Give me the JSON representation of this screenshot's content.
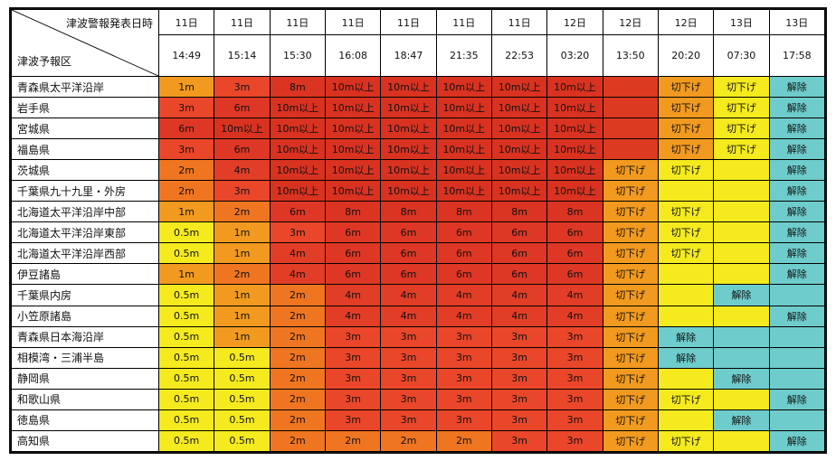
{
  "header": {
    "corner_top": "津波警報発表日時",
    "corner_bottom": "津波予報区",
    "columns": [
      {
        "day": "11日",
        "time": "14:49"
      },
      {
        "day": "11日",
        "time": "15:14"
      },
      {
        "day": "11日",
        "time": "15:30"
      },
      {
        "day": "11日",
        "time": "16:08"
      },
      {
        "day": "11日",
        "time": "18:47"
      },
      {
        "day": "11日",
        "time": "21:35"
      },
      {
        "day": "11日",
        "time": "22:53"
      },
      {
        "day": "12日",
        "time": "03:20"
      },
      {
        "day": "12日",
        "time": "13:50"
      },
      {
        "day": "12日",
        "time": "20:20"
      },
      {
        "day": "13日",
        "time": "07:30"
      },
      {
        "day": "13日",
        "time": "17:58"
      }
    ]
  },
  "rows": [
    {
      "region": "青森県太平洋沿岸",
      "cells": [
        {
          "text": "1m",
          "c": "lv-1"
        },
        {
          "text": "3m",
          "c": "lv-3"
        },
        {
          "text": "8m",
          "c": "lv-8"
        },
        {
          "text": "10m以上",
          "c": "lv-10"
        },
        {
          "text": "10m以上",
          "c": "lv-10"
        },
        {
          "text": "10m以上",
          "c": "lv-10"
        },
        {
          "text": "10m以上",
          "c": "lv-10"
        },
        {
          "text": "10m以上",
          "c": "lv-10"
        },
        {
          "text": "",
          "c": "lv-blank-red"
        },
        {
          "text": "切下げ",
          "c": "st-down-orange"
        },
        {
          "text": "切下げ",
          "c": "st-down"
        },
        {
          "text": "解除",
          "c": "st-lift"
        }
      ]
    },
    {
      "region": "岩手県",
      "cells": [
        {
          "text": "3m",
          "c": "lv-3"
        },
        {
          "text": "6m",
          "c": "lv-6"
        },
        {
          "text": "10m以上",
          "c": "lv-10"
        },
        {
          "text": "10m以上",
          "c": "lv-10"
        },
        {
          "text": "10m以上",
          "c": "lv-10"
        },
        {
          "text": "10m以上",
          "c": "lv-10"
        },
        {
          "text": "10m以上",
          "c": "lv-10"
        },
        {
          "text": "10m以上",
          "c": "lv-10"
        },
        {
          "text": "",
          "c": "lv-blank-red"
        },
        {
          "text": "切下げ",
          "c": "st-down-orange"
        },
        {
          "text": "切下げ",
          "c": "st-down"
        },
        {
          "text": "解除",
          "c": "st-lift"
        }
      ]
    },
    {
      "region": "宮城県",
      "cells": [
        {
          "text": "6m",
          "c": "lv-6"
        },
        {
          "text": "10m以上",
          "c": "lv-10"
        },
        {
          "text": "10m以上",
          "c": "lv-10"
        },
        {
          "text": "10m以上",
          "c": "lv-10"
        },
        {
          "text": "10m以上",
          "c": "lv-10"
        },
        {
          "text": "10m以上",
          "c": "lv-10"
        },
        {
          "text": "10m以上",
          "c": "lv-10"
        },
        {
          "text": "10m以上",
          "c": "lv-10"
        },
        {
          "text": "",
          "c": "lv-blank-red"
        },
        {
          "text": "切下げ",
          "c": "st-down-orange"
        },
        {
          "text": "切下げ",
          "c": "st-down"
        },
        {
          "text": "解除",
          "c": "st-lift"
        }
      ]
    },
    {
      "region": "福島県",
      "cells": [
        {
          "text": "3m",
          "c": "lv-3"
        },
        {
          "text": "6m",
          "c": "lv-6"
        },
        {
          "text": "10m以上",
          "c": "lv-10"
        },
        {
          "text": "10m以上",
          "c": "lv-10"
        },
        {
          "text": "10m以上",
          "c": "lv-10"
        },
        {
          "text": "10m以上",
          "c": "lv-10"
        },
        {
          "text": "10m以上",
          "c": "lv-10"
        },
        {
          "text": "10m以上",
          "c": "lv-10"
        },
        {
          "text": "",
          "c": "lv-blank-red"
        },
        {
          "text": "切下げ",
          "c": "st-down-orange"
        },
        {
          "text": "切下げ",
          "c": "st-down"
        },
        {
          "text": "解除",
          "c": "st-lift"
        }
      ]
    },
    {
      "region": "茨城県",
      "cells": [
        {
          "text": "2m",
          "c": "lv-2"
        },
        {
          "text": "4m",
          "c": "lv-4"
        },
        {
          "text": "10m以上",
          "c": "lv-10"
        },
        {
          "text": "10m以上",
          "c": "lv-10"
        },
        {
          "text": "10m以上",
          "c": "lv-10"
        },
        {
          "text": "10m以上",
          "c": "lv-10"
        },
        {
          "text": "10m以上",
          "c": "lv-10"
        },
        {
          "text": "10m以上",
          "c": "lv-10"
        },
        {
          "text": "切下げ",
          "c": "st-down-orange"
        },
        {
          "text": "切下げ",
          "c": "st-down"
        },
        {
          "text": "",
          "c": "st-empty-yellow"
        },
        {
          "text": "解除",
          "c": "st-lift"
        }
      ]
    },
    {
      "region": "千葉県九十九里・外房",
      "cells": [
        {
          "text": "2m",
          "c": "lv-2"
        },
        {
          "text": "3m",
          "c": "lv-3"
        },
        {
          "text": "10m以上",
          "c": "lv-10"
        },
        {
          "text": "10m以上",
          "c": "lv-10"
        },
        {
          "text": "10m以上",
          "c": "lv-10"
        },
        {
          "text": "10m以上",
          "c": "lv-10"
        },
        {
          "text": "10m以上",
          "c": "lv-10"
        },
        {
          "text": "10m以上",
          "c": "lv-10"
        },
        {
          "text": "切下げ",
          "c": "st-down-orange"
        },
        {
          "text": "",
          "c": "st-empty-yellow"
        },
        {
          "text": "",
          "c": "st-empty-yellow"
        },
        {
          "text": "解除",
          "c": "st-lift"
        }
      ]
    },
    {
      "region": "北海道太平洋沿岸中部",
      "cells": [
        {
          "text": "1m",
          "c": "lv-1"
        },
        {
          "text": "2m",
          "c": "lv-2"
        },
        {
          "text": "6m",
          "c": "lv-6"
        },
        {
          "text": "8m",
          "c": "lv-8"
        },
        {
          "text": "8m",
          "c": "lv-8"
        },
        {
          "text": "8m",
          "c": "lv-8"
        },
        {
          "text": "8m",
          "c": "lv-8"
        },
        {
          "text": "8m",
          "c": "lv-8"
        },
        {
          "text": "切下げ",
          "c": "st-down-orange"
        },
        {
          "text": "切下げ",
          "c": "st-down"
        },
        {
          "text": "",
          "c": "st-empty-yellow"
        },
        {
          "text": "解除",
          "c": "st-lift"
        }
      ]
    },
    {
      "region": "北海道太平洋沿岸東部",
      "cells": [
        {
          "text": "0.5m",
          "c": "lv-05"
        },
        {
          "text": "1m",
          "c": "lv-1"
        },
        {
          "text": "3m",
          "c": "lv-3"
        },
        {
          "text": "6m",
          "c": "lv-6"
        },
        {
          "text": "6m",
          "c": "lv-6"
        },
        {
          "text": "6m",
          "c": "lv-6"
        },
        {
          "text": "6m",
          "c": "lv-6"
        },
        {
          "text": "6m",
          "c": "lv-6"
        },
        {
          "text": "切下げ",
          "c": "st-down-orange"
        },
        {
          "text": "切下げ",
          "c": "st-down"
        },
        {
          "text": "",
          "c": "st-empty-yellow"
        },
        {
          "text": "解除",
          "c": "st-lift"
        }
      ]
    },
    {
      "region": "北海道太平洋沿岸西部",
      "cells": [
        {
          "text": "0.5m",
          "c": "lv-05"
        },
        {
          "text": "1m",
          "c": "lv-1"
        },
        {
          "text": "4m",
          "c": "lv-4"
        },
        {
          "text": "6m",
          "c": "lv-6"
        },
        {
          "text": "6m",
          "c": "lv-6"
        },
        {
          "text": "6m",
          "c": "lv-6"
        },
        {
          "text": "6m",
          "c": "lv-6"
        },
        {
          "text": "6m",
          "c": "lv-6"
        },
        {
          "text": "切下げ",
          "c": "st-down-orange"
        },
        {
          "text": "切下げ",
          "c": "st-down"
        },
        {
          "text": "",
          "c": "st-empty-yellow"
        },
        {
          "text": "解除",
          "c": "st-lift"
        }
      ]
    },
    {
      "region": "伊豆諸島",
      "cells": [
        {
          "text": "1m",
          "c": "lv-1"
        },
        {
          "text": "2m",
          "c": "lv-2"
        },
        {
          "text": "4m",
          "c": "lv-4"
        },
        {
          "text": "6m",
          "c": "lv-6"
        },
        {
          "text": "6m",
          "c": "lv-6"
        },
        {
          "text": "6m",
          "c": "lv-6"
        },
        {
          "text": "6m",
          "c": "lv-6"
        },
        {
          "text": "6m",
          "c": "lv-6"
        },
        {
          "text": "切下げ",
          "c": "st-down-orange"
        },
        {
          "text": "",
          "c": "st-empty-yellow"
        },
        {
          "text": "",
          "c": "st-empty-yellow"
        },
        {
          "text": "解除",
          "c": "st-lift"
        }
      ]
    },
    {
      "region": "千葉県内房",
      "cells": [
        {
          "text": "0.5m",
          "c": "lv-05"
        },
        {
          "text": "1m",
          "c": "lv-1"
        },
        {
          "text": "2m",
          "c": "lv-2"
        },
        {
          "text": "4m",
          "c": "lv-4"
        },
        {
          "text": "4m",
          "c": "lv-4"
        },
        {
          "text": "4m",
          "c": "lv-4"
        },
        {
          "text": "4m",
          "c": "lv-4"
        },
        {
          "text": "4m",
          "c": "lv-4"
        },
        {
          "text": "切下げ",
          "c": "st-down-orange"
        },
        {
          "text": "",
          "c": "st-empty-yellow"
        },
        {
          "text": "解除",
          "c": "st-lift"
        },
        {
          "text": "",
          "c": "st-empty-cyan"
        }
      ]
    },
    {
      "region": "小笠原諸島",
      "cells": [
        {
          "text": "0.5m",
          "c": "lv-05"
        },
        {
          "text": "1m",
          "c": "lv-1"
        },
        {
          "text": "2m",
          "c": "lv-2"
        },
        {
          "text": "4m",
          "c": "lv-4"
        },
        {
          "text": "4m",
          "c": "lv-4"
        },
        {
          "text": "4m",
          "c": "lv-4"
        },
        {
          "text": "4m",
          "c": "lv-4"
        },
        {
          "text": "4m",
          "c": "lv-4"
        },
        {
          "text": "切下げ",
          "c": "st-down-orange"
        },
        {
          "text": "",
          "c": "st-empty-yellow"
        },
        {
          "text": "",
          "c": "st-empty-yellow"
        },
        {
          "text": "解除",
          "c": "st-lift"
        }
      ]
    },
    {
      "region": "青森県日本海沿岸",
      "cells": [
        {
          "text": "0.5m",
          "c": "lv-05"
        },
        {
          "text": "1m",
          "c": "lv-1"
        },
        {
          "text": "2m",
          "c": "lv-2"
        },
        {
          "text": "3m",
          "c": "lv-3"
        },
        {
          "text": "3m",
          "c": "lv-3"
        },
        {
          "text": "3m",
          "c": "lv-3"
        },
        {
          "text": "3m",
          "c": "lv-3"
        },
        {
          "text": "3m",
          "c": "lv-3"
        },
        {
          "text": "切下げ",
          "c": "st-down-orange"
        },
        {
          "text": "解除",
          "c": "st-lift"
        },
        {
          "text": "",
          "c": "st-empty-cyan"
        },
        {
          "text": "",
          "c": "st-empty-cyan"
        }
      ]
    },
    {
      "region": "相模湾・三浦半島",
      "cells": [
        {
          "text": "0.5m",
          "c": "lv-05"
        },
        {
          "text": "0.5m",
          "c": "lv-05"
        },
        {
          "text": "2m",
          "c": "lv-2"
        },
        {
          "text": "3m",
          "c": "lv-3"
        },
        {
          "text": "3m",
          "c": "lv-3"
        },
        {
          "text": "3m",
          "c": "lv-3"
        },
        {
          "text": "3m",
          "c": "lv-3"
        },
        {
          "text": "3m",
          "c": "lv-3"
        },
        {
          "text": "切下げ",
          "c": "st-down-orange"
        },
        {
          "text": "解除",
          "c": "st-lift"
        },
        {
          "text": "",
          "c": "st-empty-cyan"
        },
        {
          "text": "",
          "c": "st-empty-cyan"
        }
      ]
    },
    {
      "region": "静岡県",
      "cells": [
        {
          "text": "0.5m",
          "c": "lv-05"
        },
        {
          "text": "0.5m",
          "c": "lv-05"
        },
        {
          "text": "2m",
          "c": "lv-2"
        },
        {
          "text": "3m",
          "c": "lv-3"
        },
        {
          "text": "3m",
          "c": "lv-3"
        },
        {
          "text": "3m",
          "c": "lv-3"
        },
        {
          "text": "3m",
          "c": "lv-3"
        },
        {
          "text": "3m",
          "c": "lv-3"
        },
        {
          "text": "切下げ",
          "c": "st-down-orange"
        },
        {
          "text": "",
          "c": "st-empty-yellow"
        },
        {
          "text": "解除",
          "c": "st-lift"
        },
        {
          "text": "",
          "c": "st-empty-cyan"
        }
      ]
    },
    {
      "region": "和歌山県",
      "cells": [
        {
          "text": "0.5m",
          "c": "lv-05"
        },
        {
          "text": "0.5m",
          "c": "lv-05"
        },
        {
          "text": "2m",
          "c": "lv-2"
        },
        {
          "text": "3m",
          "c": "lv-3"
        },
        {
          "text": "3m",
          "c": "lv-3"
        },
        {
          "text": "3m",
          "c": "lv-3"
        },
        {
          "text": "3m",
          "c": "lv-3"
        },
        {
          "text": "3m",
          "c": "lv-3"
        },
        {
          "text": "切下げ",
          "c": "st-down-orange"
        },
        {
          "text": "切下げ",
          "c": "st-down"
        },
        {
          "text": "",
          "c": "st-empty-yellow"
        },
        {
          "text": "解除",
          "c": "st-lift"
        }
      ]
    },
    {
      "region": "徳島県",
      "cells": [
        {
          "text": "0.5m",
          "c": "lv-05"
        },
        {
          "text": "0.5m",
          "c": "lv-05"
        },
        {
          "text": "2m",
          "c": "lv-2"
        },
        {
          "text": "3m",
          "c": "lv-3"
        },
        {
          "text": "3m",
          "c": "lv-3"
        },
        {
          "text": "3m",
          "c": "lv-3"
        },
        {
          "text": "3m",
          "c": "lv-3"
        },
        {
          "text": "3m",
          "c": "lv-3"
        },
        {
          "text": "切下げ",
          "c": "st-down-orange"
        },
        {
          "text": "",
          "c": "st-empty-yellow"
        },
        {
          "text": "解除",
          "c": "st-lift"
        },
        {
          "text": "",
          "c": "st-empty-cyan"
        }
      ]
    },
    {
      "region": "高知県",
      "cells": [
        {
          "text": "0.5m",
          "c": "lv-05"
        },
        {
          "text": "0.5m",
          "c": "lv-05"
        },
        {
          "text": "2m",
          "c": "lv-2"
        },
        {
          "text": "2m",
          "c": "lv-2"
        },
        {
          "text": "2m",
          "c": "lv-2"
        },
        {
          "text": "2m",
          "c": "lv-2"
        },
        {
          "text": "3m",
          "c": "lv-3"
        },
        {
          "text": "3m",
          "c": "lv-3"
        },
        {
          "text": "切下げ",
          "c": "st-down-orange"
        },
        {
          "text": "切下げ",
          "c": "st-down"
        },
        {
          "text": "",
          "c": "st-empty-yellow"
        },
        {
          "text": "解除",
          "c": "st-lift"
        }
      ]
    }
  ]
}
